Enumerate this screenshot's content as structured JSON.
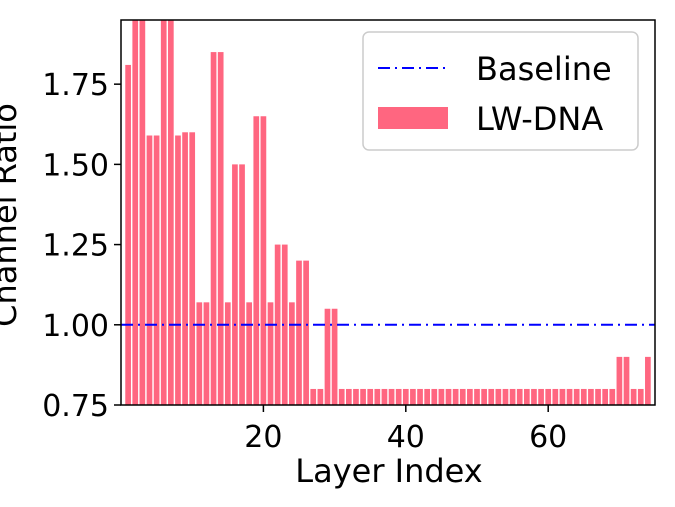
{
  "chart_data": {
    "type": "bar",
    "xlabel": "Layer Index",
    "ylabel": "Channel Ratio",
    "xlim": [
      0,
      75
    ],
    "ylim": [
      0.75,
      1.95
    ],
    "xticks": [
      20,
      40,
      60
    ],
    "yticks": [
      0.75,
      1.0,
      1.25,
      1.5,
      1.75
    ],
    "ytick_labels": [
      "0.75",
      "1.00",
      "1.25",
      "1.50",
      "1.75"
    ],
    "xtick_labels": [
      "20",
      "40",
      "60"
    ],
    "grid": false,
    "legend_position": "top-right",
    "baseline": {
      "name": "Baseline",
      "value": 1.0,
      "color": "#0000ff",
      "style": "dash-dot"
    },
    "series": [
      {
        "name": "LW-DNA",
        "color": "#ff6680",
        "x": [
          1,
          2,
          3,
          4,
          5,
          6,
          7,
          8,
          9,
          10,
          11,
          12,
          13,
          14,
          15,
          16,
          17,
          18,
          19,
          20,
          21,
          22,
          23,
          24,
          25,
          26,
          27,
          28,
          29,
          30,
          31,
          32,
          33,
          34,
          35,
          36,
          37,
          38,
          39,
          40,
          41,
          42,
          43,
          44,
          45,
          46,
          47,
          48,
          49,
          50,
          51,
          52,
          53,
          54,
          55,
          56,
          57,
          58,
          59,
          60,
          61,
          62,
          63,
          64,
          65,
          66,
          67,
          68,
          69,
          70,
          71,
          72,
          73,
          74
        ],
        "values": [
          1.81,
          1.95,
          1.95,
          1.59,
          1.59,
          1.95,
          1.95,
          1.59,
          1.6,
          1.6,
          1.07,
          1.07,
          1.85,
          1.85,
          1.07,
          1.5,
          1.5,
          1.07,
          1.65,
          1.65,
          1.07,
          1.25,
          1.25,
          1.07,
          1.2,
          1.2,
          0.8,
          0.8,
          1.05,
          1.05,
          0.8,
          0.8,
          0.8,
          0.8,
          0.8,
          0.8,
          0.8,
          0.8,
          0.8,
          0.8,
          0.8,
          0.8,
          0.8,
          0.8,
          0.8,
          0.8,
          0.8,
          0.8,
          0.8,
          0.8,
          0.8,
          0.8,
          0.8,
          0.8,
          0.8,
          0.8,
          0.8,
          0.8,
          0.8,
          0.8,
          0.8,
          0.8,
          0.8,
          0.8,
          0.8,
          0.8,
          0.8,
          0.8,
          0.8,
          0.9,
          0.9,
          0.8,
          0.8,
          0.9
        ]
      }
    ]
  }
}
